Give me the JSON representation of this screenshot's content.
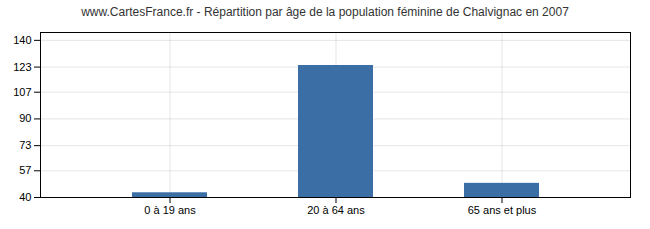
{
  "chart_data": {
    "type": "bar",
    "title": "www.CartesFrance.fr - Répartition par âge de la population féminine de Chalvignac en 2007",
    "categories": [
      "0 à 19 ans",
      "20 à 64 ans",
      "65 ans et plus"
    ],
    "values": [
      43,
      124,
      49
    ],
    "color": "#3a6ea5",
    "ylim": [
      40,
      145
    ],
    "yticks": [
      40,
      57,
      73,
      90,
      107,
      123,
      140
    ],
    "grid": true
  }
}
